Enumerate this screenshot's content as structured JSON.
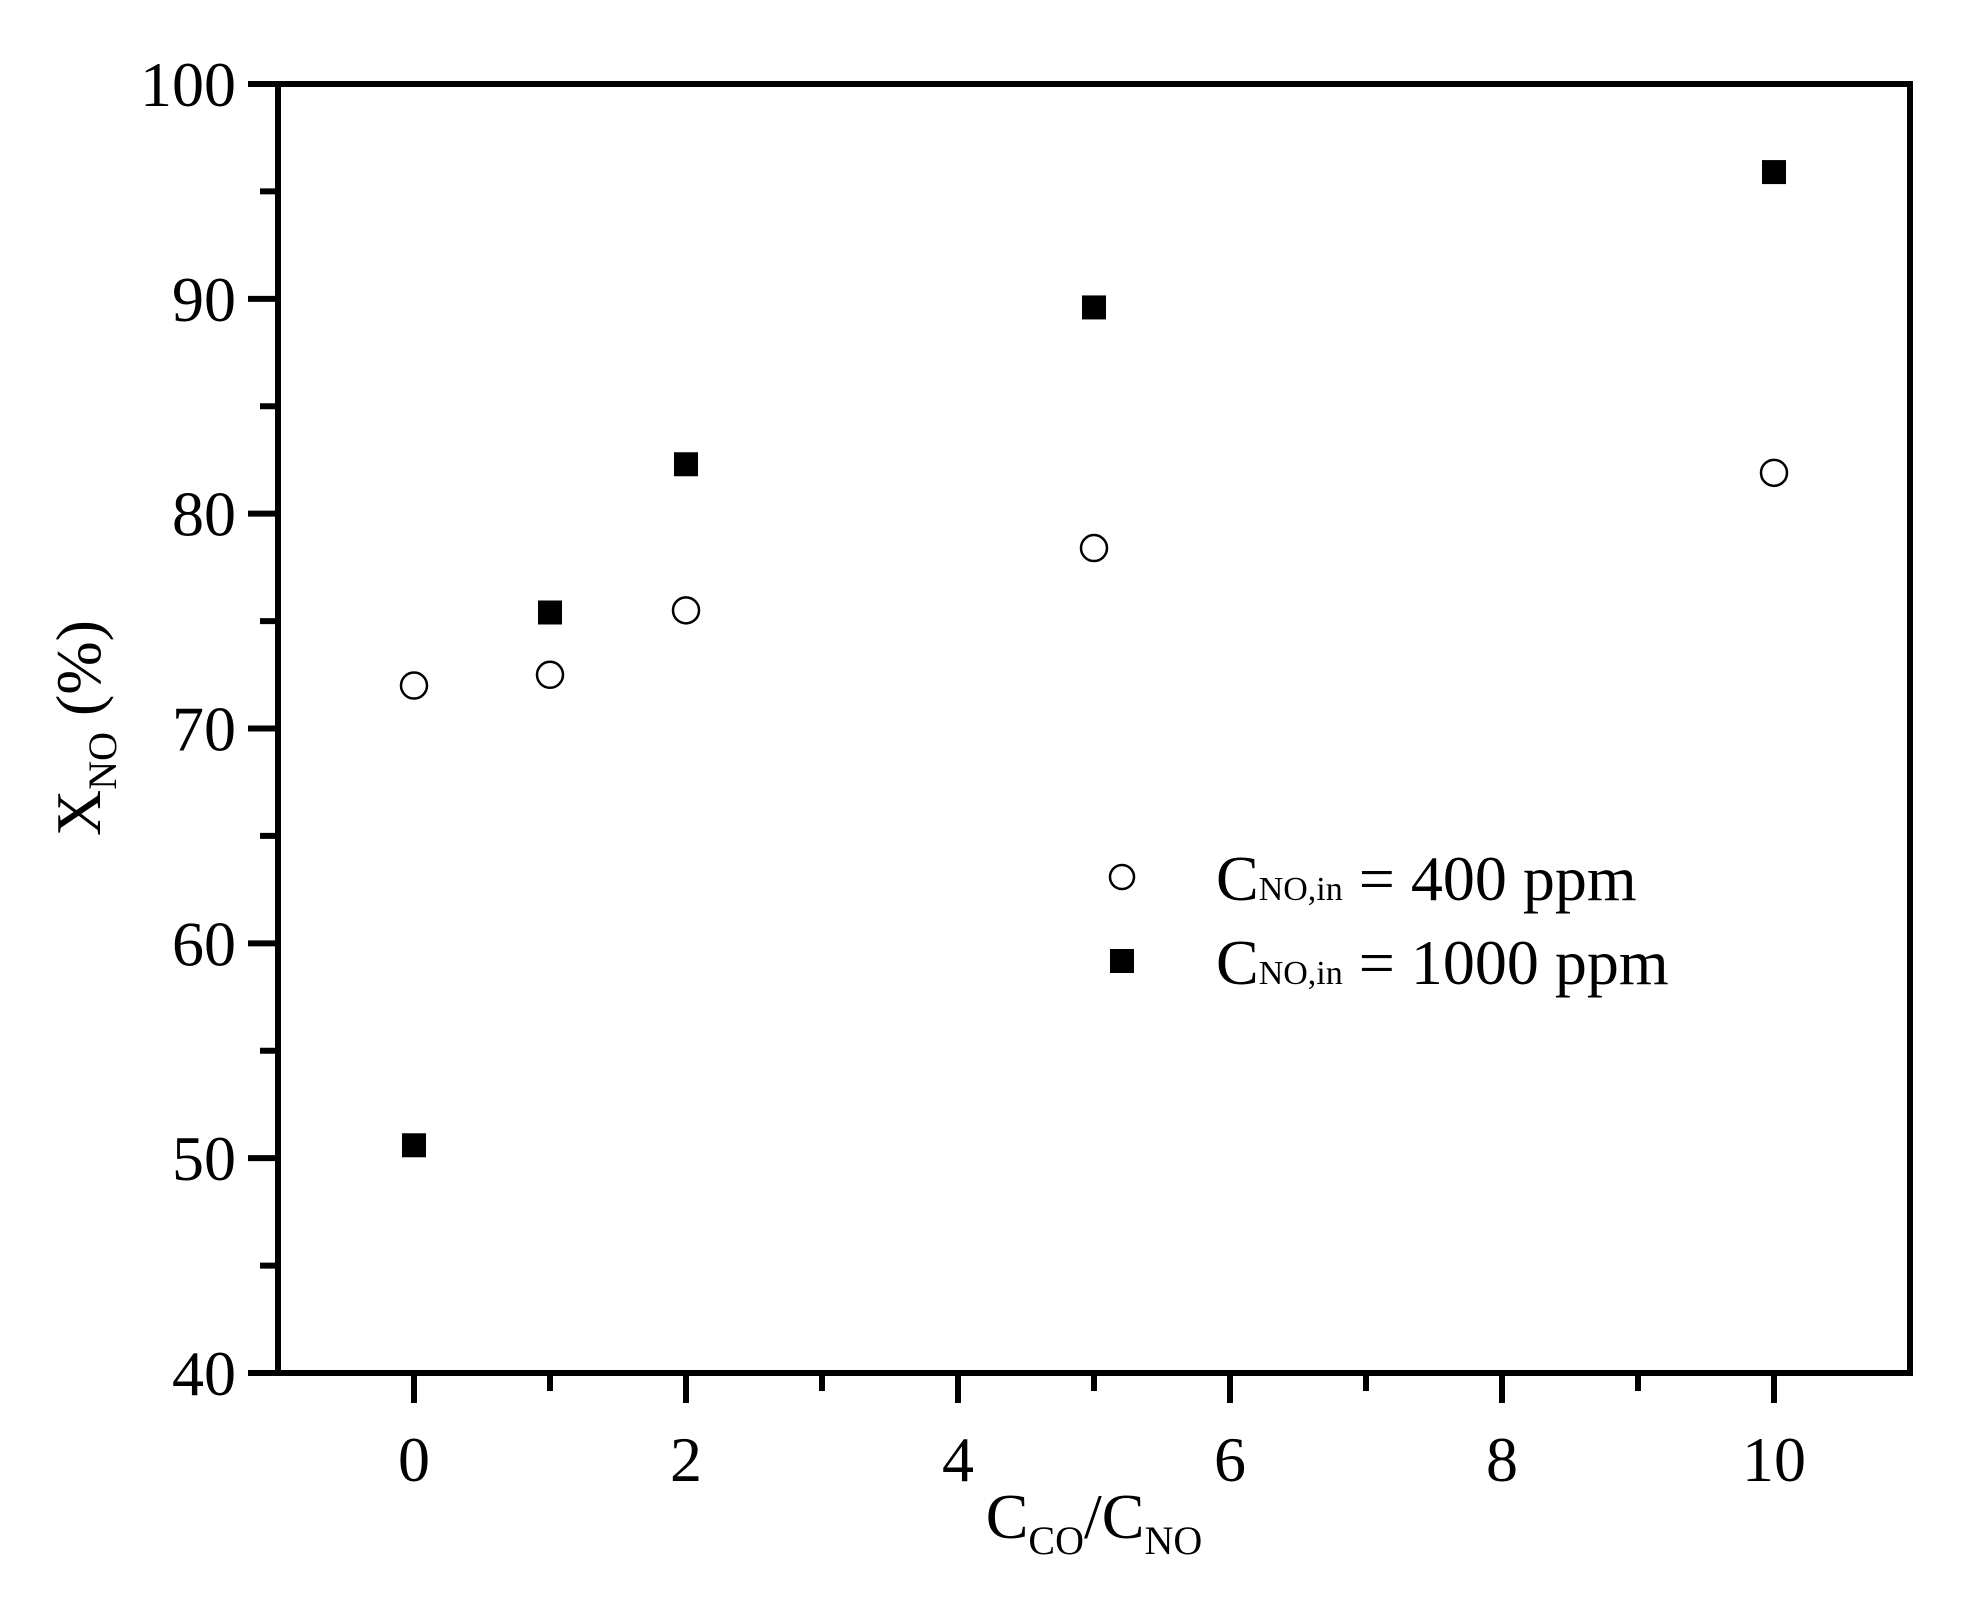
{
  "chart_data": {
    "type": "scatter",
    "title": "",
    "xlabel": {
      "main": "C",
      "sub1": "CO",
      "slash": "/C",
      "sub2": "NO"
    },
    "ylabel": {
      "main": "X",
      "sub": "NO",
      "unit": " (%)"
    },
    "xlim": [
      -1,
      11
    ],
    "ylim": [
      40,
      100
    ],
    "xticks": [
      0,
      2,
      4,
      6,
      8,
      10
    ],
    "xticks_minor": [
      1,
      3,
      5,
      7,
      9
    ],
    "yticks": [
      40,
      50,
      60,
      70,
      80,
      90,
      100
    ],
    "yticks_minor": [
      45,
      55,
      65,
      75,
      85,
      95
    ],
    "grid": false,
    "legend_position": "right-middle",
    "series": [
      {
        "name": "C_NO,in = 400 ppm",
        "label": {
          "main": "C",
          "sub": "NO,in",
          "rest": " = 400 ppm"
        },
        "marker": "open-circle",
        "color": "#000000",
        "x": [
          0,
          1,
          2,
          5,
          10
        ],
        "y": [
          72.0,
          72.5,
          75.5,
          78.4,
          81.9
        ]
      },
      {
        "name": "C_NO,in = 1000 ppm",
        "label": {
          "main": "C",
          "sub": "NO,in",
          "rest": " = 1000 ppm"
        },
        "marker": "filled-square",
        "color": "#000000",
        "x": [
          0,
          1,
          2,
          5,
          10
        ],
        "y": [
          50.6,
          75.4,
          82.3,
          89.6,
          95.9
        ]
      }
    ]
  }
}
